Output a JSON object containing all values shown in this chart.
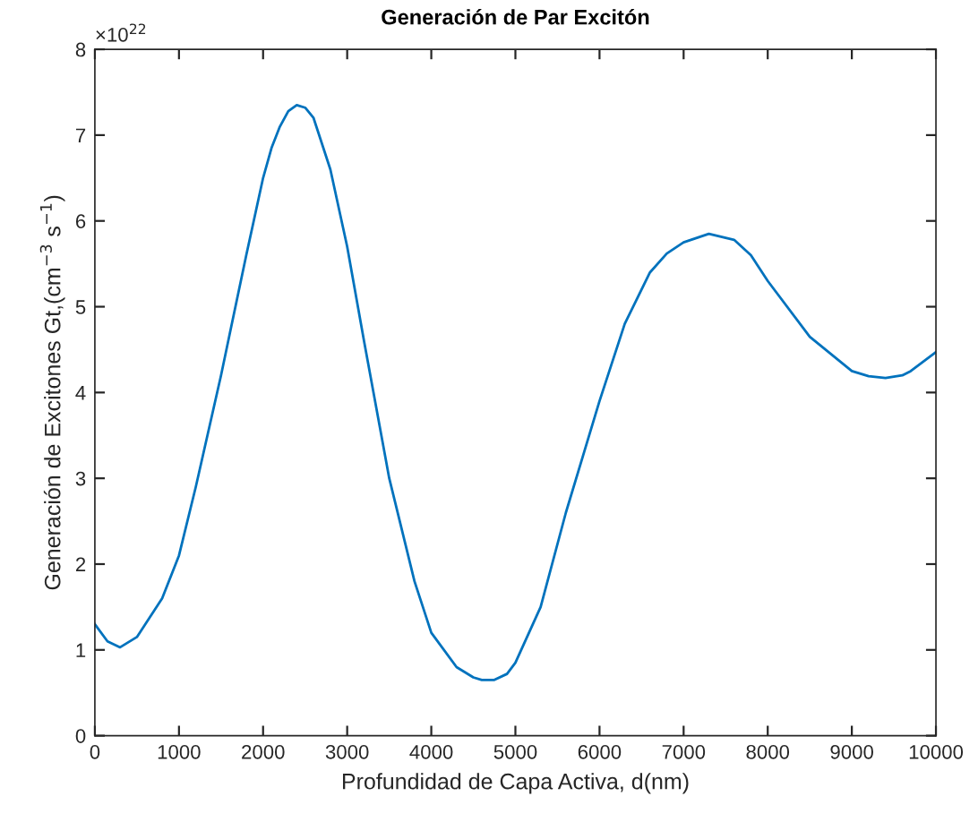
{
  "chart_data": {
    "type": "line",
    "title": "Generación de Par Excitón",
    "xlabel": "Profundidad de Capa Activa, d(nm)",
    "ylabel": "Generación de Excitones Gt,(cm$^{−3}$ s$^{−1}$)",
    "annotations": [
      "×10$^{22}$"
    ],
    "x": [
      0,
      150,
      300,
      500,
      800,
      1000,
      1200,
      1500,
      1800,
      2000,
      2100,
      2200,
      2300,
      2400,
      2500,
      2600,
      2800,
      3000,
      3200,
      3500,
      3800,
      4000,
      4300,
      4500,
      4600,
      4750,
      4900,
      5000,
      5300,
      5600,
      6000,
      6300,
      6600,
      6800,
      7000,
      7300,
      7600,
      7800,
      8000,
      8500,
      9000,
      9200,
      9400,
      9600,
      9700,
      10000
    ],
    "series": [
      {
        "color": "#0072bd",
        "values": [
          1.3,
          1.1,
          1.03,
          1.15,
          1.6,
          2.1,
          2.9,
          4.2,
          5.6,
          6.5,
          6.85,
          7.1,
          7.28,
          7.35,
          7.32,
          7.2,
          6.6,
          5.7,
          4.6,
          3.0,
          1.8,
          1.2,
          0.8,
          0.68,
          0.65,
          0.65,
          0.72,
          0.85,
          1.5,
          2.6,
          3.9,
          4.8,
          5.4,
          5.62,
          5.75,
          5.85,
          5.78,
          5.6,
          5.3,
          4.65,
          4.25,
          4.19,
          4.17,
          4.2,
          4.25,
          4.47
        ]
      }
    ],
    "xlim": [
      0,
      10000
    ],
    "ylim": [
      0,
      8
    ],
    "xticks": [
      0,
      1000,
      2000,
      3000,
      4000,
      5000,
      6000,
      7000,
      8000,
      9000,
      10000
    ],
    "yticks": [
      0,
      1,
      2,
      3,
      4,
      5,
      6,
      7,
      8
    ],
    "grid": false,
    "legend": false,
    "marker": "none",
    "line_style": "solid"
  }
}
